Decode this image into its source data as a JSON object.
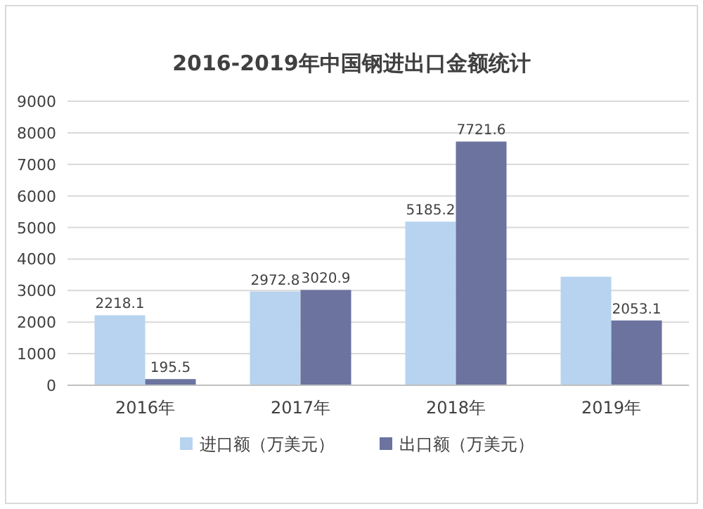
{
  "chart_data": {
    "type": "bar",
    "title": "2016-2019年中国钢进出口金额统计",
    "categories": [
      "2016年",
      "2017年",
      "2018年",
      "2019年"
    ],
    "series": [
      {
        "name": "进口额（万美元）",
        "color": "#b7d3ef",
        "values": [
          2218.1,
          2972.8,
          5185.2,
          3440
        ],
        "value_labels": [
          "2218.1",
          "2972.8",
          "5185.2",
          null
        ]
      },
      {
        "name": "出口额（万美元）",
        "color": "#6b739e",
        "values": [
          195.5,
          3020.9,
          7721.6,
          2053.1
        ],
        "value_labels": [
          "195.5",
          "3020.9",
          "7721.6",
          "2053.1"
        ]
      }
    ],
    "ylim": [
      0,
      9000
    ],
    "yticks": [
      0,
      1000,
      2000,
      3000,
      4000,
      5000,
      6000,
      7000,
      8000,
      9000
    ],
    "grid": "y",
    "legend": "bottom"
  }
}
